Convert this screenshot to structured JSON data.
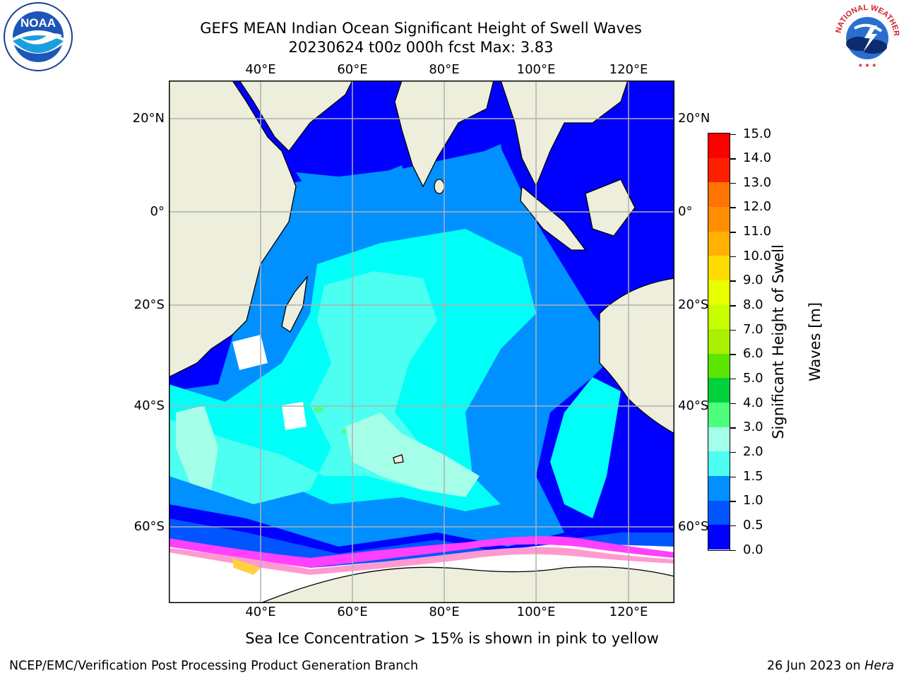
{
  "title": {
    "line1": "GEFS MEAN Indian Ocean Significant Height of Swell Waves",
    "line2": "20230624 t00z 000h fcst   Max: 3.83"
  },
  "logos": {
    "left": {
      "name": "noaa-logo",
      "text": "NOAA",
      "ring_text": "NATIONAL OCEANIC AND ATMOSPHERIC ADMINISTRATION · U.S. DEPARTMENT OF COMMERCE"
    },
    "right": {
      "name": "nws-logo",
      "ring_text": "NATIONAL WEATHER SERVICE"
    }
  },
  "axes": {
    "lon_ticks": [
      "40°E",
      "60°E",
      "80°E",
      "100°E",
      "120°E"
    ],
    "lat_ticks": [
      "20°N",
      "0°",
      "20°S",
      "40°S",
      "60°S"
    ]
  },
  "colorbar": {
    "title_line1": "Significant Height of Swell",
    "title_line2": "Waves [m]",
    "labels": [
      "15.0",
      "14.0",
      "13.0",
      "12.0",
      "11.0",
      "10.0",
      "9.0",
      "8.0",
      "7.0",
      "6.0",
      "5.0",
      "4.0",
      "3.0",
      "2.0",
      "1.5",
      "1.0",
      "0.5",
      "0.0"
    ],
    "colors_top_to_bottom": [
      "#ff0000",
      "#ff2000",
      "#ff4e00",
      "#ff7300",
      "#ff8e00",
      "#ffb000",
      "#ffdc00",
      "#fff700",
      "#e8ff00",
      "#c8ff00",
      "#aaf000",
      "#5ae600",
      "#00e600",
      "#00d13a",
      "#4dff7d",
      "#a5ffe8",
      "#4dfff0",
      "#00fff8",
      "#0090ff",
      "#0055ff",
      "#0000ff"
    ]
  },
  "map": {
    "land_color": "#eeeedc",
    "no_swell_color": "#ffffff",
    "ice_colors": [
      "#ff40ff",
      "#ff9ad0",
      "#ffd040"
    ]
  },
  "footer": {
    "note": "Sea Ice Concentration > 15% is shown in pink to yellow",
    "credit_left": "NCEP/EMC/Verification Post Processing Product Generation Branch",
    "credit_right_date": "26 Jun 2023 on ",
    "credit_right_system": "Hera"
  }
}
